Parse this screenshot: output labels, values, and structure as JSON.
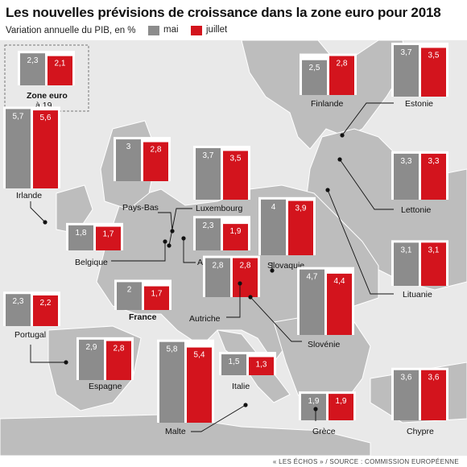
{
  "title": "Les nouvelles prévisions de croissance dans la zone euro pour 2018",
  "subtitle": "Variation annuelle du PIB, en %",
  "legend": [
    {
      "label": "mai",
      "color": "#8c8c8c"
    },
    {
      "label": "juillet",
      "color": "#d3141d"
    }
  ],
  "source": "« LES ÉCHOS » / SOURCE : COMMISSION EUROPÉENNE",
  "zone_euro": {
    "name": "Zone euro",
    "sub": "à 19"
  },
  "chart_data": {
    "type": "bar",
    "title": "Les nouvelles prévisions de croissance dans la zone euro pour 2018",
    "subtitle": "Variation annuelle du PIB, en %",
    "series_names": [
      "mai",
      "juillet"
    ],
    "categories": [
      "Zone euro",
      "Irlande",
      "Pays-Bas",
      "Luxembourg",
      "Belgique",
      "Allemagne",
      "Slovaquie",
      "France",
      "Autriche",
      "Portugal",
      "Slovénie",
      "Espagne",
      "Malte",
      "Italie",
      "Finlande",
      "Estonie",
      "Lettonie",
      "Lituanie",
      "Grèce",
      "Chypre"
    ],
    "series": [
      {
        "name": "mai",
        "values": [
          2.3,
          5.7,
          3,
          3.7,
          1.8,
          2.3,
          4,
          2,
          2.8,
          2.3,
          4.7,
          2.9,
          5.8,
          1.5,
          2.5,
          3.7,
          3.3,
          3.1,
          1.9,
          3.6
        ]
      },
      {
        "name": "juillet",
        "values": [
          2.1,
          5.6,
          2.8,
          3.5,
          1.7,
          1.9,
          3.9,
          1.7,
          2.8,
          2.2,
          4.4,
          2.8,
          5.4,
          1.3,
          2.8,
          3.5,
          3.3,
          3.1,
          1.9,
          3.6
        ]
      }
    ],
    "value_labels": {
      "mai": [
        "2,3",
        "5,7",
        "3",
        "3,7",
        "1,8",
        "2,3",
        "4",
        "2",
        "2,8",
        "2,3",
        "4,7",
        "2,9",
        "5,8",
        "1,5",
        "2,5",
        "3,7",
        "3,3",
        "3,1",
        "1,9",
        "3,6"
      ],
      "juillet": [
        "2,1",
        "5,6",
        "2,8",
        "3,5",
        "1,7",
        "1,9",
        "3,9",
        "1,7",
        "2,8",
        "2,2",
        "4,4",
        "2,8",
        "5,4",
        "1,3",
        "2,8",
        "3,5",
        "3,3",
        "3,1",
        "1,9",
        "3,6"
      ]
    },
    "bold_categories": [
      "France"
    ]
  }
}
